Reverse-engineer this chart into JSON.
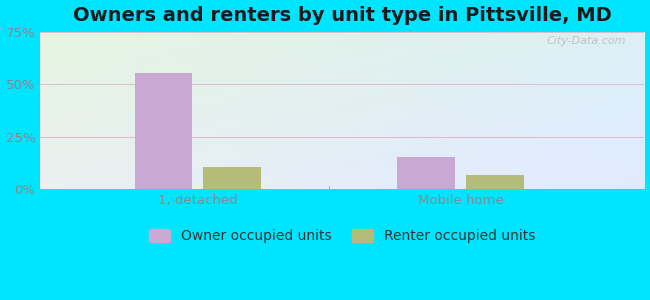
{
  "title": "Owners and renters by unit type in Pittsville, MD",
  "categories": [
    "1, detached",
    "Mobile home"
  ],
  "owner_values": [
    0.555,
    0.155
  ],
  "renter_values": [
    0.105,
    0.07
  ],
  "owner_color": "#c9a8d4",
  "renter_color": "#b5bb78",
  "ylim": [
    0,
    0.75
  ],
  "yticks": [
    0,
    0.25,
    0.5,
    0.75
  ],
  "ytick_labels": [
    "0%",
    "25%",
    "50%",
    "75%"
  ],
  "bar_width": 0.22,
  "outer_bg": "#00e5ff",
  "watermark": "City-Data.com",
  "legend_owner": "Owner occupied units",
  "legend_renter": "Renter occupied units",
  "title_fontsize": 14,
  "axis_fontsize": 9.5,
  "legend_fontsize": 10,
  "grid_color": "#ddbbcc",
  "tick_color": "#888888"
}
